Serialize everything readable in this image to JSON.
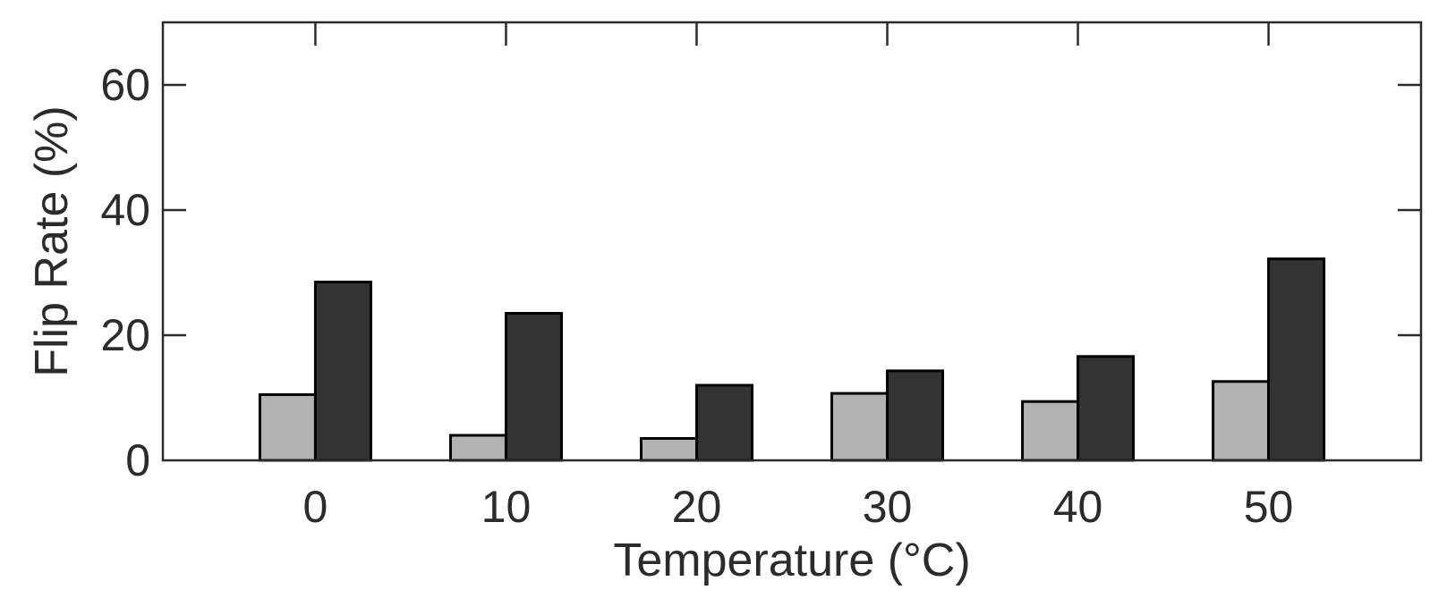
{
  "chart_data": {
    "type": "bar",
    "categories": [
      "0",
      "10",
      "20",
      "30",
      "40",
      "50"
    ],
    "series": [
      {
        "values": [
          10.5,
          4.0,
          3.5,
          10.7,
          9.4,
          12.6
        ],
        "color": "#b3b3b3"
      },
      {
        "values": [
          28.5,
          23.5,
          12.0,
          14.3,
          16.6,
          32.2
        ],
        "color": "#333333"
      }
    ],
    "xlabel": "Temperature (°C)",
    "ylabel": "Flip Rate (%)",
    "ylim": [
      0,
      70
    ],
    "yticks": [
      0,
      20,
      40,
      60
    ],
    "grid": false,
    "legend": "none"
  }
}
